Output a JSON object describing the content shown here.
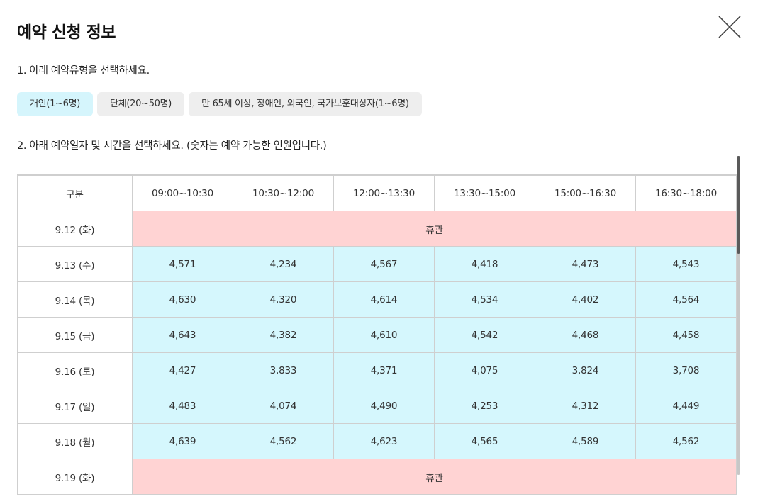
{
  "modal": {
    "title": "예약 신청 정보"
  },
  "step1": {
    "label": "1. 아래 예약유형을 선택하세요.",
    "types": [
      {
        "label": "개인(1~6명)",
        "selected": true
      },
      {
        "label": "단체(20~50명)",
        "selected": false
      },
      {
        "label": "만 65세 이상, 장애인, 외국인, 국가보훈대상자(1~6명)",
        "selected": false
      }
    ]
  },
  "step2": {
    "label": "2. 아래 예약일자 및 시간을 선택하세요. (숫자는 예약 가능한 인원입니다.)"
  },
  "table": {
    "headers": [
      "구분",
      "09:00~10:30",
      "10:30~12:00",
      "12:00~13:30",
      "13:30~15:00",
      "15:00~16:30",
      "16:30~18:00"
    ],
    "closed_label": "휴관",
    "rows": [
      {
        "date": "9.12 (화)",
        "closed": true
      },
      {
        "date": "9.13 (수)",
        "values": [
          "4,571",
          "4,234",
          "4,567",
          "4,418",
          "4,473",
          "4,543"
        ]
      },
      {
        "date": "9.14 (목)",
        "values": [
          "4,630",
          "4,320",
          "4,614",
          "4,534",
          "4,402",
          "4,564"
        ]
      },
      {
        "date": "9.15 (금)",
        "values": [
          "4,643",
          "4,382",
          "4,610",
          "4,542",
          "4,468",
          "4,458"
        ]
      },
      {
        "date": "9.16 (토)",
        "values": [
          "4,427",
          "3,833",
          "4,371",
          "4,075",
          "3,824",
          "3,708"
        ]
      },
      {
        "date": "9.17 (일)",
        "values": [
          "4,483",
          "4,074",
          "4,490",
          "4,253",
          "4,312",
          "4,449"
        ]
      },
      {
        "date": "9.18 (월)",
        "values": [
          "4,639",
          "4,562",
          "4,623",
          "4,565",
          "4,589",
          "4,562"
        ]
      },
      {
        "date": "9.19 (화)",
        "closed": true
      }
    ]
  },
  "colors": {
    "available_cell": "#d5f7fd",
    "closed_cell": "#ffd3d3",
    "selected_type": "#d5f5fc",
    "unselected_type": "#eeeeee"
  },
  "icons": {
    "close": "close-icon"
  }
}
